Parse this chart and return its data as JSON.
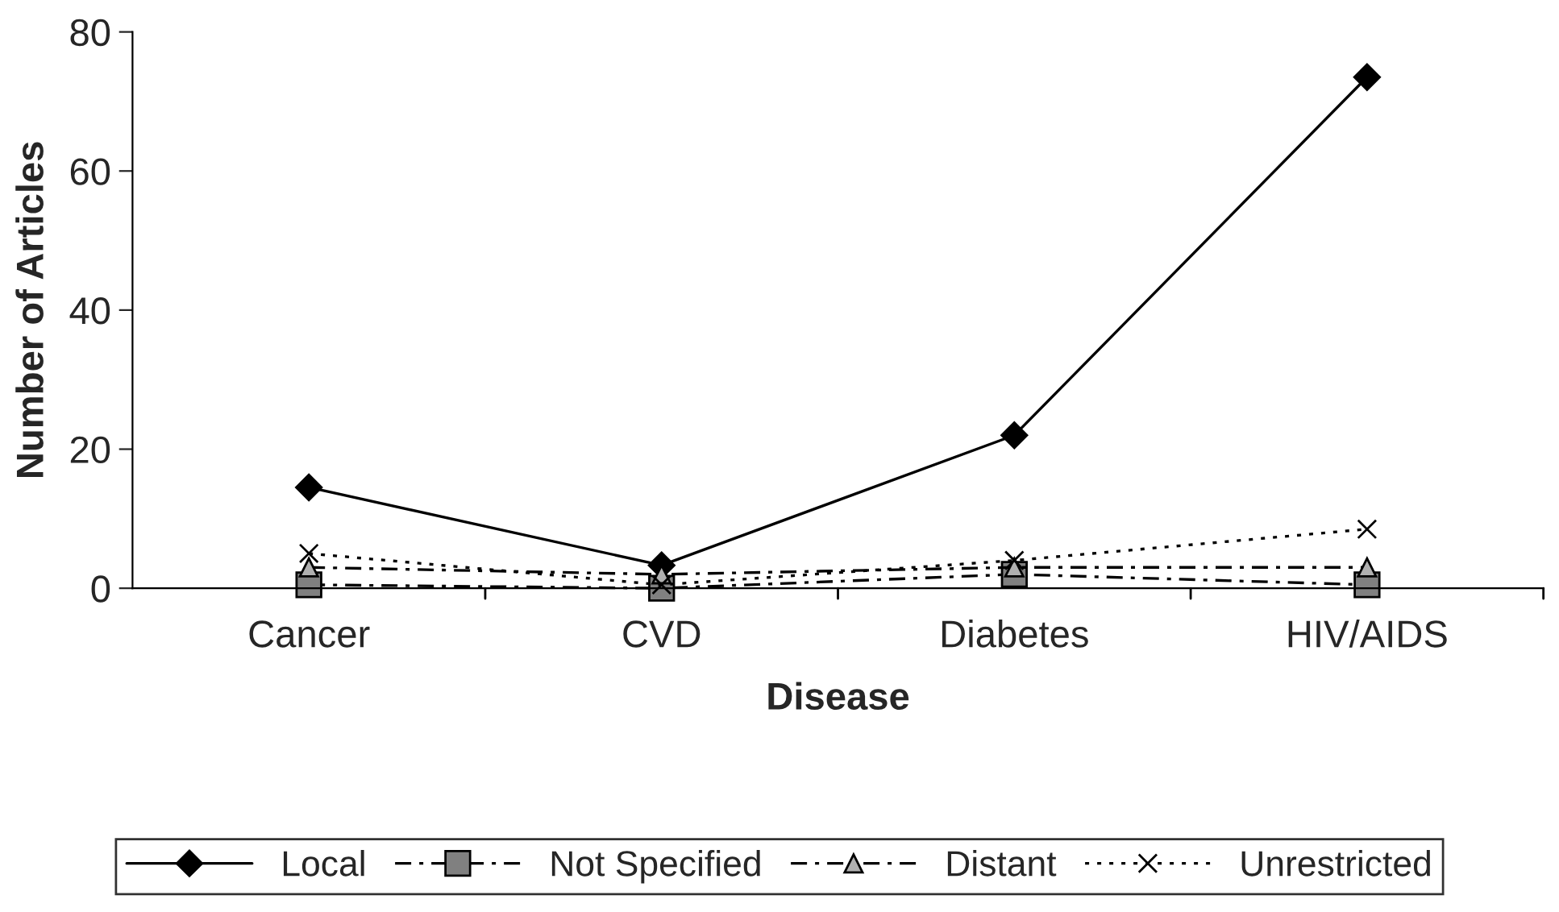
{
  "chart_data": {
    "type": "line",
    "xlabel": "Disease",
    "ylabel": "Number of Articles",
    "categories": [
      "Cancer",
      "CVD",
      "Diabetes",
      "HIV/AIDS"
    ],
    "series": [
      {
        "name": "Local",
        "color": "#000000",
        "marker": "diamond",
        "line_style": "solid",
        "values": [
          14.5,
          3.3,
          22,
          73.5
        ]
      },
      {
        "name": "Not Specified",
        "color": "#808080",
        "marker": "square",
        "line_style": "dashed",
        "values": [
          0.5,
          0,
          2,
          0.5
        ]
      },
      {
        "name": "Distant",
        "color": "#b0b0b0",
        "marker": "triangle",
        "line_style": "dashed",
        "values": [
          3,
          2,
          3,
          3
        ]
      },
      {
        "name": "Unrestricted",
        "color": "#000000",
        "marker": "cross",
        "line_style": "dotted",
        "values": [
          5,
          0.5,
          4,
          8.5
        ]
      }
    ],
    "ylim": [
      0,
      80
    ],
    "yticks": [
      0,
      20,
      40,
      60,
      80
    ],
    "grid": false,
    "legend": "bottom"
  }
}
